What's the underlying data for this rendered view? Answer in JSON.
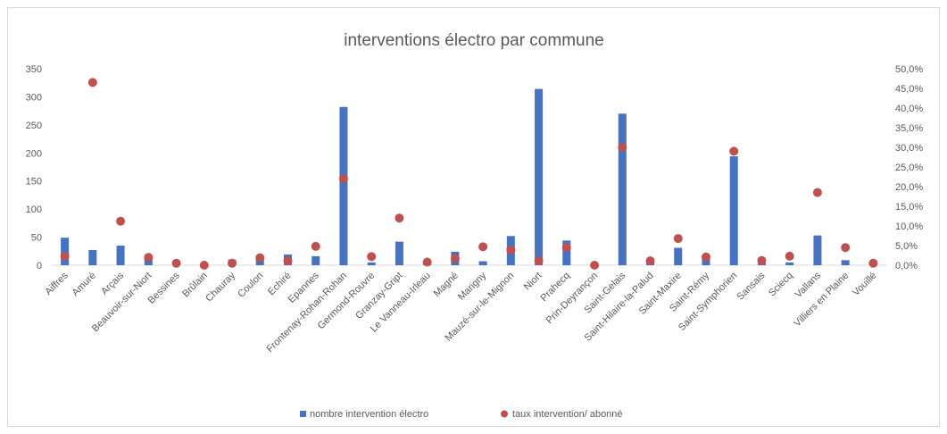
{
  "chart_data": {
    "type": "bar",
    "title": "interventions électro par commune",
    "xlabel": "",
    "ylabel": "",
    "categories": [
      "Aiffres",
      "Amuré",
      "Arçais",
      "Beauvoir-sur-Niort",
      "Bessines",
      "Brûlain",
      "Chauray",
      "Coulon",
      "Echiré",
      "Epannes",
      "Frontenay-Rohan-Rohan",
      "Germond-Rouvre",
      "Granzay-Gript",
      "Le Vanneau-Irleau",
      "Magné",
      "Marigny",
      "Mauzé-sur-le-Mignon",
      "Niort",
      "Prahecq",
      "Prin-Deyrançon",
      "Saint-Gelais",
      "Saint-Hilaire-la-Palud",
      "Saint-Maxire",
      "Saint-Rémy",
      "Saint-Symphorien",
      "Sansais",
      "Sciecq",
      "Vallans",
      "Villiers en Plaine",
      "Vouillé"
    ],
    "ylim": [
      0,
      350
    ],
    "y_ticks": [
      "0",
      "50",
      "100",
      "150",
      "200",
      "250",
      "300",
      "350"
    ],
    "y2lim": [
      0,
      50
    ],
    "y2_ticks": [
      "0,0%",
      "5,0%",
      "10,0%",
      "15,0%",
      "20,0%",
      "25,0%",
      "30,0%",
      "35,0%",
      "40,0%",
      "45,0%",
      "50,0%"
    ],
    "grid": false,
    "legend_position": "bottom",
    "series": [
      {
        "name": "nombre intervention électro",
        "type": "bar",
        "axis": "left",
        "color": "#4472c4",
        "values": [
          49,
          27,
          35,
          13,
          2,
          1,
          10,
          14,
          19,
          16,
          282,
          5,
          42,
          2,
          24,
          7,
          52,
          314,
          44,
          1,
          270,
          4,
          31,
          12,
          194,
          4,
          5,
          53,
          9,
          2
        ]
      },
      {
        "name": "taux intervention/ abonné",
        "type": "scatter",
        "axis": "right",
        "color": "#c0504d",
        "values": [
          2.3,
          46.5,
          11.2,
          2.0,
          0.5,
          0.0,
          0.5,
          1.9,
          1.1,
          4.8,
          22.0,
          2.2,
          12.0,
          0.8,
          1.7,
          4.7,
          3.9,
          1.1,
          4.5,
          0.0,
          30.0,
          1.1,
          6.8,
          2.1,
          29.0,
          1.2,
          2.3,
          18.5,
          4.5,
          0.5
        ]
      }
    ]
  }
}
